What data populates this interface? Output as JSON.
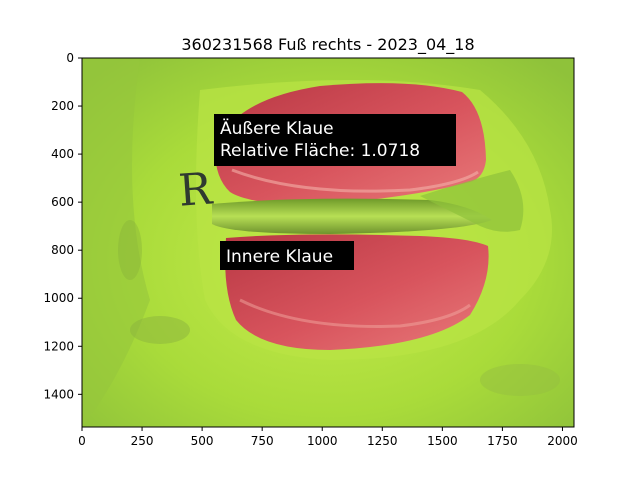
{
  "figure": {
    "title": "360231568 Fuß rechts - 2023_04_18",
    "x_ticks": [
      "0",
      "250",
      "500",
      "750",
      "1000",
      "1250",
      "1500",
      "1750",
      "2000"
    ],
    "y_ticks": [
      "0",
      "200",
      "400",
      "600",
      "800",
      "1000",
      "1200",
      "1400"
    ],
    "x_range": [
      0,
      2048
    ],
    "y_range": [
      0,
      1536
    ]
  },
  "annotations": {
    "outer": {
      "line1": "Äußere Klaue",
      "line2": "Relative Fläche: 1.0718"
    },
    "inner": {
      "line1": "Innere Klaue"
    }
  },
  "photo": {
    "marker_letter": "R",
    "colors": {
      "background_green": "#a8dc3c",
      "claw_red": "#d9505a",
      "label_box": "#000000"
    }
  }
}
